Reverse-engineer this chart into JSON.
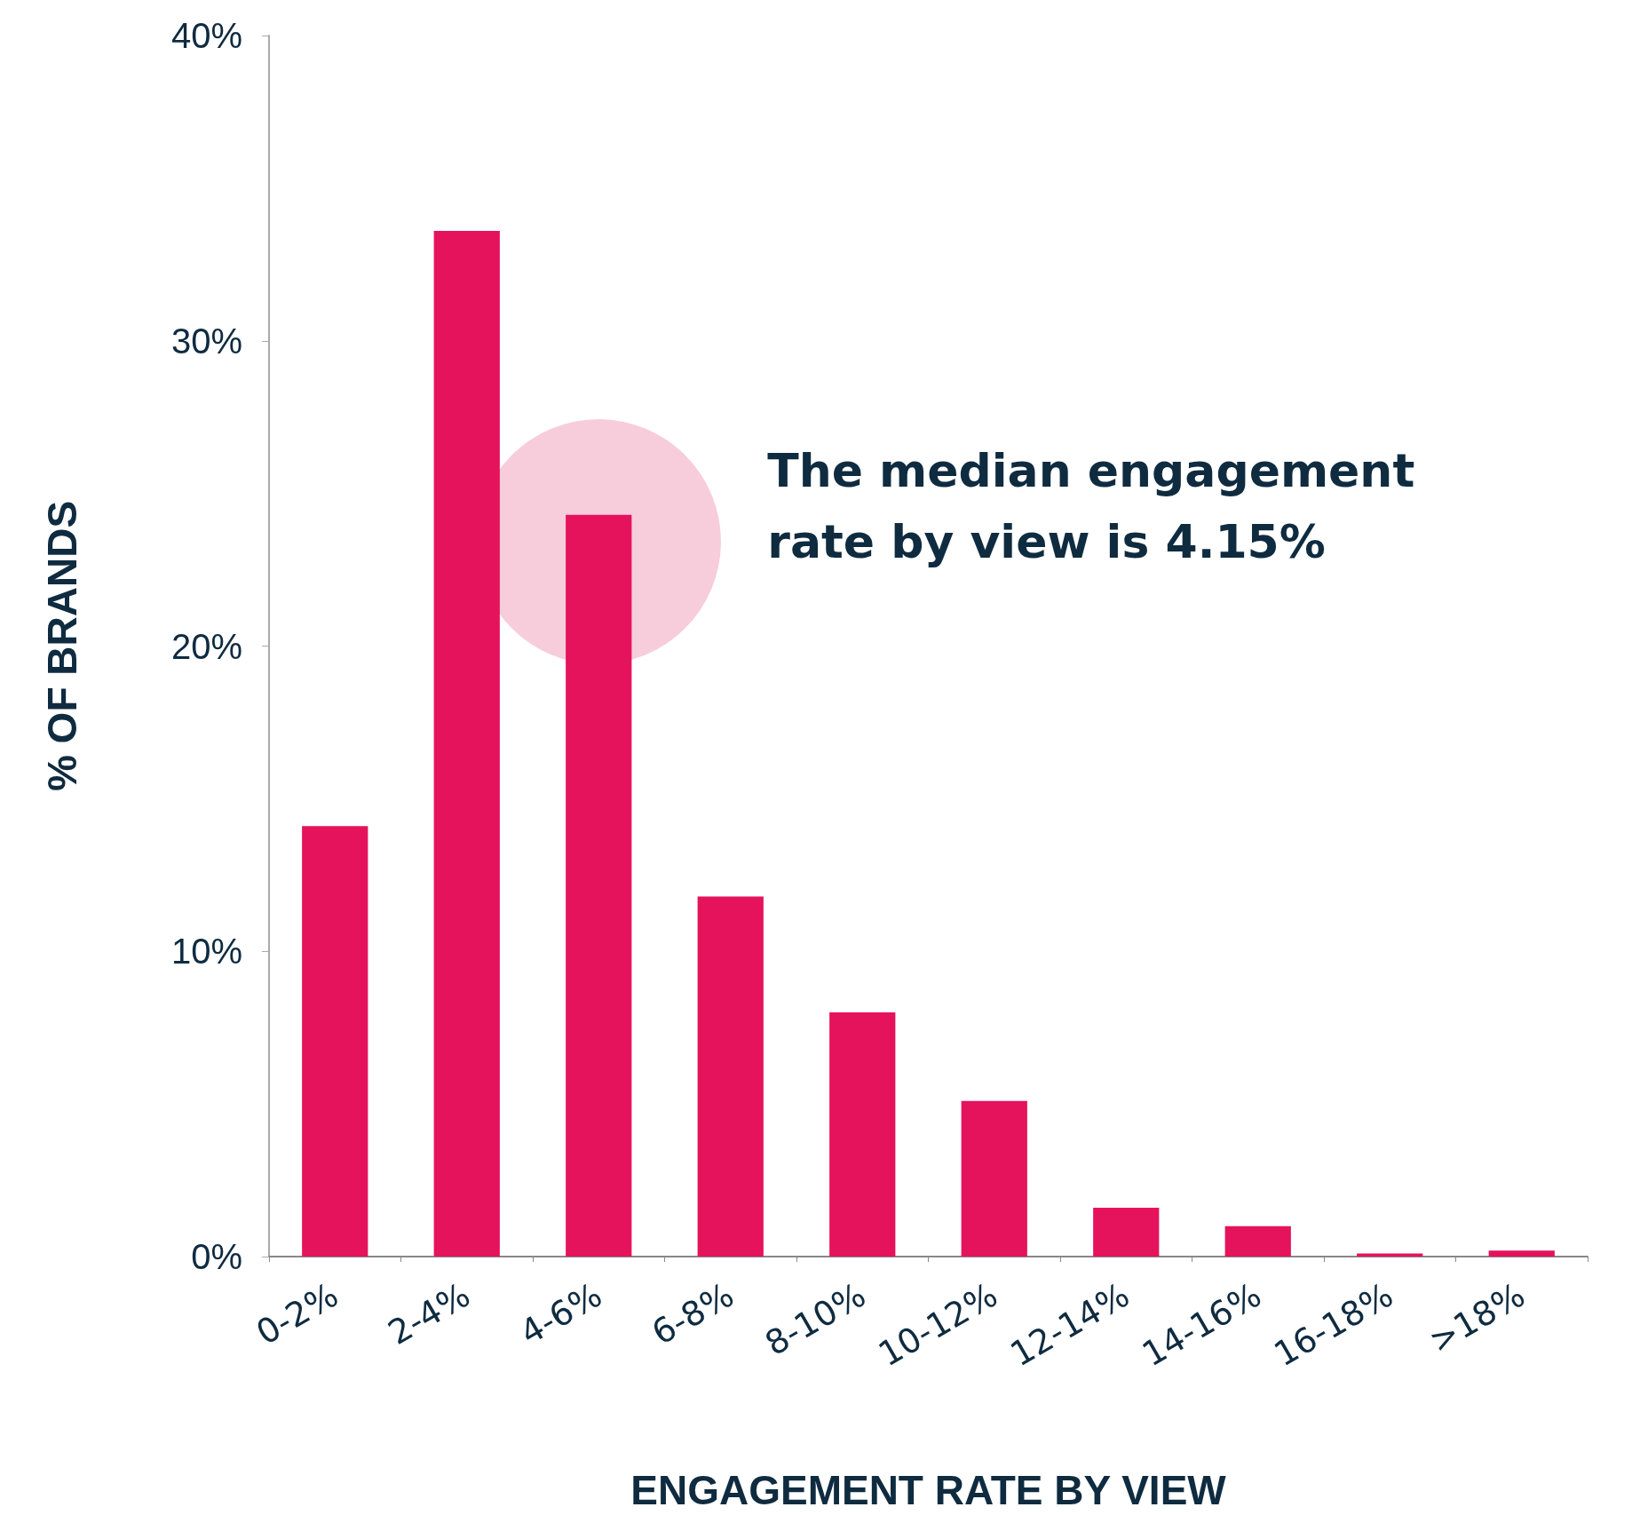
{
  "chart_data": {
    "type": "bar",
    "xlabel": "ENGAGEMENT RATE BY VIEW",
    "ylabel": "% OF BRANDS",
    "categories": [
      "0-2%",
      "2-4%",
      "4-6%",
      "6-8%",
      "8-10%",
      "10-12%",
      "12-14%",
      "14-16%",
      "16-18%",
      ">18%"
    ],
    "values": [
      14.1,
      33.6,
      24.3,
      11.8,
      8,
      5.1,
      1.6,
      1,
      0.1,
      0.2
    ],
    "color": "#e5135c",
    "ylim": [
      0,
      40
    ],
    "yticks": [
      {
        "value": 0,
        "label": "0%"
      },
      {
        "value": 10,
        "label": "10%"
      },
      {
        "value": 20,
        "label": "20%"
      },
      {
        "value": 30,
        "label": "30%"
      },
      {
        "value": 40,
        "label": "40%"
      }
    ],
    "annotations": [
      "The median engagement rate by view is 4.15%"
    ]
  }
}
